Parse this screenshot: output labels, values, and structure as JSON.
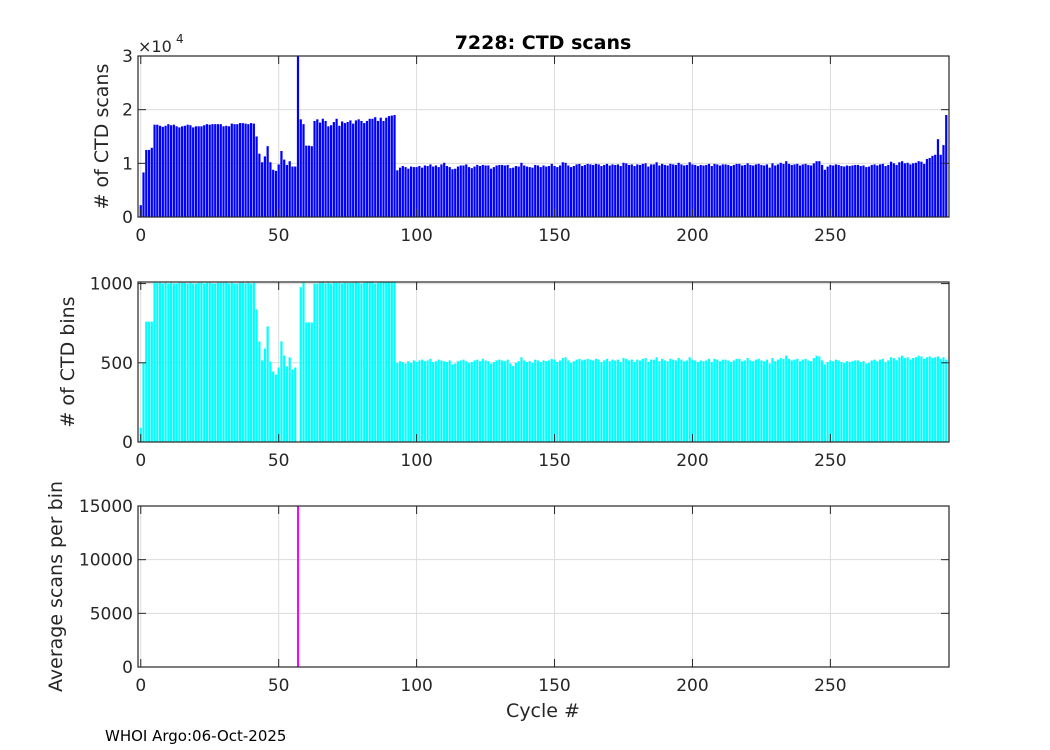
{
  "title": "7228: CTD scans",
  "xlabel": "Cycle #",
  "footer": "WHOI Argo:06-Oct-2025",
  "colors": {
    "scans": "#0000ff",
    "bins": "#00ffff",
    "avg": "#ff00ff",
    "grid": "#dcdcdc",
    "axis": "#262626"
  },
  "chart_data": [
    {
      "type": "bar",
      "ylabel": "# of CTD scans",
      "xlim": [
        -1,
        293
      ],
      "ylim": [
        0,
        30000
      ],
      "yticks": [
        0,
        10000,
        20000,
        30000
      ],
      "ytick_labels": [
        "0",
        "1",
        "2",
        "3"
      ],
      "y_exponent_label": "×10",
      "y_exponent": "4",
      "xticks": [
        0,
        50,
        100,
        150,
        200,
        250
      ],
      "xtick_labels": [
        "0",
        "50",
        "100",
        "150",
        "200",
        "250"
      ],
      "grid": true,
      "values": [
        2200,
        8300,
        12500,
        12500,
        12900,
        17200,
        17200,
        17000,
        16800,
        17000,
        17300,
        17100,
        17200,
        16900,
        16700,
        16900,
        17000,
        17200,
        17100,
        16700,
        16900,
        16900,
        16900,
        17100,
        17300,
        17200,
        17300,
        17300,
        17300,
        17300,
        16900,
        17000,
        16900,
        17400,
        17300,
        17300,
        17500,
        17500,
        17400,
        17300,
        17500,
        17400,
        15000,
        11800,
        10200,
        11300,
        13200,
        10200,
        8800,
        8600,
        9800,
        12300,
        10700,
        9700,
        10400,
        9400,
        9400,
        30000,
        18200,
        17300,
        13300,
        13300,
        13200,
        17900,
        18200,
        17600,
        18300,
        17900,
        16900,
        17100,
        17700,
        18300,
        17000,
        17800,
        17500,
        17700,
        18000,
        17400,
        18000,
        18200,
        17900,
        17500,
        17900,
        18300,
        18300,
        18600,
        17900,
        18500,
        17900,
        18500,
        18800,
        18900,
        19000,
        8700,
        9200,
        9500,
        9300,
        9000,
        9400,
        9300,
        9300,
        9500,
        9200,
        9600,
        9500,
        9800,
        9400,
        9600,
        9300,
        9800,
        10100,
        9500,
        9300,
        8900,
        9000,
        9400,
        9600,
        9600,
        9800,
        9300,
        9100,
        9400,
        9700,
        9500,
        9700,
        9600,
        9600,
        9000,
        9300,
        9600,
        9700,
        9700,
        9600,
        9700,
        9100,
        9200,
        9500,
        9400,
        10100,
        9600,
        9400,
        9300,
        9200,
        9700,
        9600,
        9300,
        9600,
        9400,
        9500,
        9900,
        9500,
        9300,
        9600,
        10200,
        10100,
        9600,
        9300,
        9500,
        9800,
        9900,
        9500,
        9700,
        9900,
        9800,
        9700,
        9900,
        9800,
        9500,
        9700,
        9900,
        9600,
        9800,
        9700,
        9800,
        9500,
        10100,
        10000,
        9700,
        9800,
        9500,
        9800,
        9700,
        9900,
        10000,
        9400,
        9800,
        9800,
        10200,
        9600,
        9900,
        9700,
        9600,
        9900,
        9800,
        9700,
        10100,
        9800,
        9600,
        9700,
        10200,
        9800,
        9700,
        9500,
        9700,
        9600,
        9700,
        9900,
        9500,
        9900,
        9800,
        9600,
        9800,
        9800,
        9700,
        9500,
        9700,
        9900,
        9900,
        9600,
        9700,
        10000,
        9700,
        9600,
        9800,
        9900,
        9700,
        9600,
        9800,
        9200,
        10000,
        9600,
        9800,
        10100,
        9900,
        10400,
        9900,
        9700,
        9800,
        9900,
        9600,
        9800,
        9900,
        9700,
        9600,
        10000,
        10400,
        10400,
        9700,
        8800,
        9400,
        9700,
        9600,
        9800,
        9700,
        9500,
        9400,
        9600,
        9500,
        9600,
        9700,
        9700,
        9500,
        9600,
        9300,
        9400,
        9700,
        9800,
        9600,
        9800,
        9900,
        9500,
        9700,
        10300,
        10000,
        9700,
        10200,
        10400,
        10000,
        10100,
        9800,
        10000,
        10100,
        10400,
        10300,
        9900,
        10800,
        11000,
        11400,
        11600,
        14500,
        11600,
        13400,
        19000
      ]
    },
    {
      "type": "bar",
      "ylabel": "# of CTD bins",
      "xlim": [
        -1,
        293
      ],
      "ylim": [
        0,
        1010
      ],
      "yticks": [
        0,
        500,
        1000
      ],
      "ytick_labels": [
        "0",
        "500",
        "1000"
      ],
      "xticks": [
        0,
        50,
        100,
        150,
        200,
        250
      ],
      "xtick_labels": [
        "0",
        "50",
        "100",
        "150",
        "200",
        "250"
      ],
      "grid": true,
      "values": [
        90,
        500,
        760,
        760,
        760,
        1005,
        1005,
        1005,
        1000,
        1005,
        1000,
        1005,
        1000,
        1000,
        1005,
        1005,
        1005,
        1000,
        1005,
        1000,
        1000,
        1005,
        1005,
        1000,
        1005,
        1005,
        1000,
        1000,
        1005,
        1005,
        1005,
        1005,
        1000,
        1005,
        1000,
        1000,
        1005,
        1005,
        1000,
        1005,
        1000,
        1005,
        837,
        635,
        515,
        590,
        730,
        508,
        445,
        426,
        470,
        635,
        546,
        477,
        534,
        458,
        470,
        2,
        977,
        1006,
        755,
        755,
        755,
        1000,
        1000,
        1005,
        1010,
        1000,
        1005,
        1000,
        1005,
        1005,
        1005,
        1000,
        1005,
        1005,
        1005,
        1005,
        1010,
        1005,
        1000,
        1005,
        1010,
        1010,
        1010,
        1000,
        1005,
        1010,
        1010,
        1010,
        1010,
        1010,
        1010,
        500,
        510,
        505,
        495,
        510,
        500,
        515,
        505,
        515,
        520,
        510,
        515,
        525,
        505,
        510,
        520,
        515,
        510,
        505,
        515,
        490,
        495,
        510,
        515,
        520,
        510,
        500,
        505,
        515,
        520,
        510,
        525,
        515,
        510,
        495,
        505,
        515,
        520,
        515,
        510,
        520,
        495,
        480,
        500,
        510,
        535,
        515,
        505,
        510,
        500,
        520,
        515,
        505,
        515,
        510,
        515,
        525,
        520,
        505,
        515,
        530,
        535,
        515,
        500,
        510,
        520,
        525,
        515,
        520,
        525,
        520,
        515,
        525,
        520,
        505,
        515,
        525,
        510,
        520,
        515,
        520,
        505,
        530,
        525,
        515,
        520,
        505,
        520,
        515,
        525,
        530,
        505,
        520,
        520,
        535,
        510,
        525,
        515,
        510,
        525,
        520,
        515,
        530,
        520,
        510,
        515,
        535,
        520,
        515,
        505,
        515,
        510,
        515,
        525,
        505,
        525,
        520,
        510,
        520,
        520,
        515,
        505,
        515,
        525,
        525,
        510,
        515,
        530,
        515,
        510,
        520,
        525,
        515,
        510,
        520,
        495,
        530,
        510,
        520,
        530,
        525,
        545,
        525,
        515,
        520,
        525,
        510,
        520,
        525,
        515,
        510,
        530,
        545,
        540,
        515,
        490,
        505,
        515,
        510,
        520,
        515,
        505,
        500,
        510,
        505,
        510,
        515,
        515,
        505,
        510,
        495,
        500,
        515,
        520,
        510,
        520,
        525,
        505,
        515,
        535,
        530,
        515,
        535,
        545,
        530,
        535,
        520,
        530,
        535,
        545,
        540,
        525,
        535,
        540,
        530,
        535,
        540,
        525,
        535,
        520
      ]
    },
    {
      "type": "bar",
      "ylabel": "Average scans per bin",
      "xlabel": "Cycle #",
      "xlim": [
        -1,
        293
      ],
      "ylim": [
        0,
        15000
      ],
      "yticks": [
        0,
        5000,
        10000,
        15000
      ],
      "ytick_labels": [
        "0",
        "5000",
        "10000",
        "15000"
      ],
      "xticks": [
        0,
        50,
        100,
        150,
        200,
        250
      ],
      "xtick_labels": [
        "0",
        "50",
        "100",
        "150",
        "200",
        "250"
      ],
      "grid": true,
      "derived_from": "scans / bins",
      "notable": {
        "cycle": 57,
        "value": 15000
      }
    }
  ]
}
